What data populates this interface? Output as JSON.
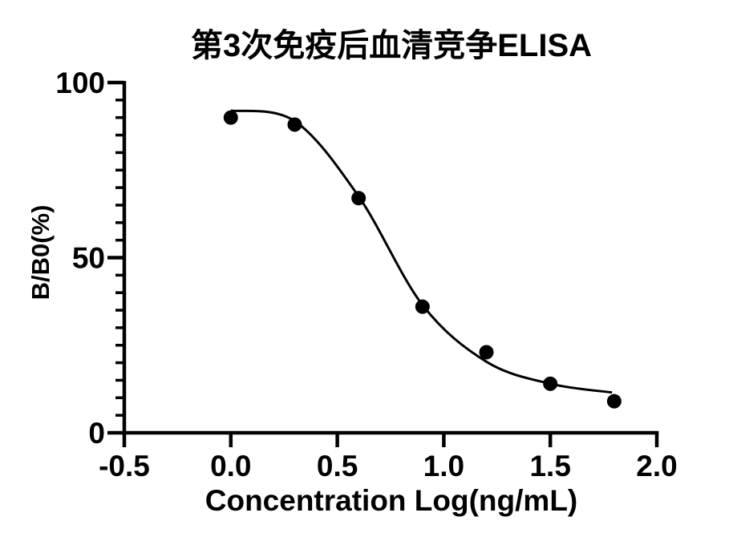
{
  "chart_data": {
    "type": "scatter",
    "title": "第3次免疫后血清竞争ELISA",
    "xlabel": "Concentration Log(ng/mL)",
    "ylabel": "B/B0(%)",
    "xlim": [
      -0.5,
      2.0
    ],
    "ylim": [
      0,
      100
    ],
    "grid": false,
    "legend": false,
    "axis_color": "#000000",
    "marker_color": "#000000",
    "line_color": "#000000",
    "background_color": "#ffffff",
    "x_ticks": [
      {
        "value": -0.5,
        "label": "-0.5"
      },
      {
        "value": 0.0,
        "label": "0.0"
      },
      {
        "value": 0.5,
        "label": "0.5"
      },
      {
        "value": 1.0,
        "label": "1.0"
      },
      {
        "value": 1.5,
        "label": "1.5"
      },
      {
        "value": 2.0,
        "label": "2.0"
      }
    ],
    "y_ticks": [
      {
        "value": 0,
        "label": "0"
      },
      {
        "value": 50,
        "label": "50"
      },
      {
        "value": 100,
        "label": "100"
      }
    ],
    "y_minor_tick_step": 5,
    "series": [
      {
        "name": "measured-points",
        "type": "scatter",
        "marker": "filled-circle",
        "x": [
          0.0,
          0.3,
          0.6,
          0.9,
          1.2,
          1.5,
          1.8
        ],
        "y": [
          90,
          88,
          67,
          36,
          23,
          14,
          9
        ]
      },
      {
        "name": "fit-curve",
        "type": "line",
        "x": [
          0.0,
          0.3,
          0.6,
          0.9,
          1.2,
          1.5,
          1.79
        ],
        "y": [
          92,
          89,
          67.5,
          36.5,
          20.3,
          14,
          11.5
        ]
      }
    ]
  }
}
